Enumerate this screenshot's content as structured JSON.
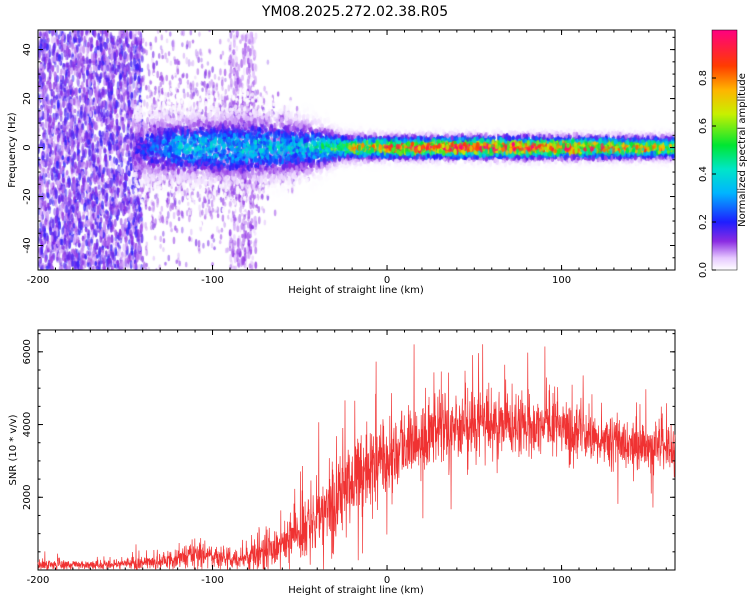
{
  "figure": {
    "title": "YM08.2025.272.02.38.R05"
  },
  "colorbar": {
    "label": "Normalized spectral amplitude",
    "ticks": [
      0.0,
      0.2,
      0.4,
      0.6,
      0.8
    ],
    "tick_labels": [
      "0.0",
      "0.2",
      "0.4",
      "0.6",
      "0.8"
    ],
    "stops": [
      {
        "v": 0.0,
        "color": "#ffffff"
      },
      {
        "v": 0.05,
        "color": "#e6c8ff"
      },
      {
        "v": 0.12,
        "color": "#8a2be2"
      },
      {
        "v": 0.2,
        "color": "#1e1eff"
      },
      {
        "v": 0.32,
        "color": "#00b4ff"
      },
      {
        "v": 0.42,
        "color": "#00e6c8"
      },
      {
        "v": 0.52,
        "color": "#00e632"
      },
      {
        "v": 0.65,
        "color": "#c8f000"
      },
      {
        "v": 0.75,
        "color": "#ffb400"
      },
      {
        "v": 0.85,
        "color": "#ff3c00"
      },
      {
        "v": 1.0,
        "color": "#ff0080"
      }
    ]
  },
  "chart_data": [
    {
      "type": "heatmap",
      "title": "YM08.2025.272.02.38.R05",
      "xlabel": "Height of straight line (km)",
      "ylabel": "Frequency (Hz)",
      "xlim": [
        -200,
        165
      ],
      "ylim": [
        -50,
        48
      ],
      "xticks": [
        -200,
        -100,
        0,
        100
      ],
      "xtick_labels": [
        "-200",
        "-100",
        "0",
        "100"
      ],
      "yticks": [
        -40,
        -20,
        0,
        20,
        40
      ],
      "ytick_labels": [
        "-40",
        "-20",
        "0",
        "20",
        "40"
      ],
      "description_series": [
        {
          "name": "broadband_noise",
          "x_range": [
            -200,
            -140
          ],
          "freq_range": [
            -50,
            48
          ],
          "amplitude": 0.12
        },
        {
          "name": "noise_band_2",
          "x_range": [
            -90,
            -75
          ],
          "freq_range": [
            -50,
            48
          ],
          "amplitude": 0.08
        },
        {
          "name": "signal_band",
          "x_range": [
            -145,
            165
          ],
          "center_freq": 0,
          "amplitude_profile": [
            {
              "x": -145,
              "a": 0.15,
              "w": 10
            },
            {
              "x": -120,
              "a": 0.35,
              "w": 9
            },
            {
              "x": -80,
              "a": 0.35,
              "w": 10
            },
            {
              "x": -45,
              "a": 0.35,
              "w": 8
            },
            {
              "x": -25,
              "a": 0.55,
              "w": 4
            },
            {
              "x": 0,
              "a": 0.8,
              "w": 3.5
            },
            {
              "x": 50,
              "a": 0.9,
              "w": 3.5
            },
            {
              "x": 100,
              "a": 0.85,
              "w": 3.5
            },
            {
              "x": 165,
              "a": 0.6,
              "w": 3.5
            }
          ]
        }
      ]
    },
    {
      "type": "line",
      "series_name": "SNR",
      "color": "#f03232",
      "xlabel": "Height of straight line (km)",
      "ylabel": "SNR (10 * v/v)",
      "xlim": [
        -200,
        165
      ],
      "ylim": [
        0,
        6600
      ],
      "xticks": [
        -200,
        -100,
        0,
        100
      ],
      "xtick_labels": [
        "-200",
        "-100",
        "0",
        "100"
      ],
      "yticks": [
        2000,
        4000,
        6000
      ],
      "ytick_labels": [
        "2000",
        "4000",
        "6000"
      ],
      "envelope": [
        {
          "x": -200,
          "mean": 150,
          "spread": 120
        },
        {
          "x": -160,
          "mean": 150,
          "spread": 100
        },
        {
          "x": -130,
          "mean": 220,
          "spread": 180
        },
        {
          "x": -110,
          "mean": 400,
          "spread": 350
        },
        {
          "x": -85,
          "mean": 300,
          "spread": 250
        },
        {
          "x": -60,
          "mean": 600,
          "spread": 500
        },
        {
          "x": -45,
          "mean": 1300,
          "spread": 800
        },
        {
          "x": -30,
          "mean": 1900,
          "spread": 1000
        },
        {
          "x": -15,
          "mean": 2600,
          "spread": 1100
        },
        {
          "x": 0,
          "mean": 3100,
          "spread": 1100
        },
        {
          "x": 20,
          "mean": 3600,
          "spread": 900
        },
        {
          "x": 45,
          "mean": 4000,
          "spread": 900
        },
        {
          "x": 70,
          "mean": 4000,
          "spread": 850
        },
        {
          "x": 100,
          "mean": 3900,
          "spread": 700
        },
        {
          "x": 130,
          "mean": 3500,
          "spread": 600
        },
        {
          "x": 165,
          "mean": 3300,
          "spread": 600
        }
      ]
    }
  ]
}
